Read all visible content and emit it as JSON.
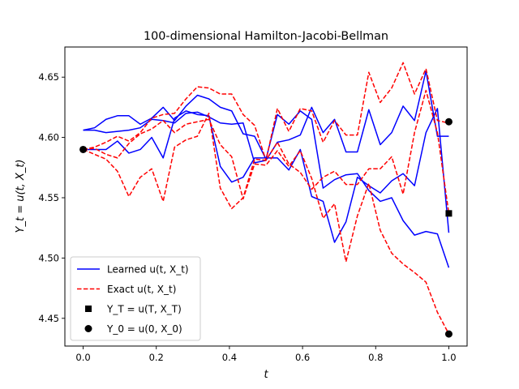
{
  "chart_data": {
    "type": "line",
    "title": "100-dimensional Hamilton-Jacobi-Bellman",
    "xlabel": "t",
    "ylabel": "Y_t = u(t, X_t)",
    "xlim": [
      -0.05,
      1.05
    ],
    "ylim": [
      4.427,
      4.675
    ],
    "xticks": [
      0.0,
      0.2,
      0.4,
      0.6,
      0.8,
      1.0
    ],
    "yticks": [
      4.45,
      4.5,
      4.55,
      4.6,
      4.65
    ],
    "x": [
      0.0,
      0.0312,
      0.0625,
      0.0938,
      0.125,
      0.1562,
      0.1875,
      0.2188,
      0.25,
      0.2812,
      0.3125,
      0.3438,
      0.375,
      0.4062,
      0.4375,
      0.4688,
      0.5,
      0.5312,
      0.5625,
      0.5938,
      0.625,
      0.6562,
      0.6875,
      0.7188,
      0.75,
      0.7812,
      0.8125,
      0.8438,
      0.875,
      0.9062,
      0.9375,
      0.9688,
      1.0
    ],
    "series": [
      {
        "name": "Learned u(t, X_t)",
        "kind": "learned",
        "color": "#0000ff",
        "values": [
          4.606,
          4.606,
          4.604,
          4.605,
          4.606,
          4.608,
          4.615,
          4.614,
          4.612,
          4.62,
          4.621,
          4.617,
          4.612,
          4.611,
          4.612,
          4.579,
          4.581,
          4.596,
          4.598,
          4.602,
          4.625,
          4.604,
          4.615,
          4.588,
          4.588,
          4.623,
          4.594,
          4.604,
          4.626,
          4.614,
          4.655,
          4.601,
          4.601
        ]
      },
      {
        "name": "",
        "kind": "learned",
        "color": "#0000ff",
        "values": [
          4.606,
          4.608,
          4.615,
          4.618,
          4.618,
          4.611,
          4.616,
          4.625,
          4.614,
          4.626,
          4.635,
          4.632,
          4.625,
          4.622,
          4.603,
          4.601,
          4.582,
          4.619,
          4.611,
          4.622,
          4.615,
          4.558,
          4.565,
          4.569,
          4.57,
          4.556,
          4.547,
          4.55,
          4.531,
          4.519,
          4.522,
          4.52,
          4.492
        ]
      },
      {
        "name": "",
        "kind": "learned",
        "color": "#0000ff",
        "values": [
          4.59,
          4.59,
          4.59,
          4.597,
          4.587,
          4.59,
          4.6,
          4.583,
          4.616,
          4.622,
          4.619,
          4.618,
          4.576,
          4.563,
          4.567,
          4.583,
          4.583,
          4.583,
          4.573,
          4.59,
          4.551,
          4.547,
          4.513,
          4.53,
          4.567,
          4.56,
          4.554,
          4.564,
          4.57,
          4.56,
          4.604,
          4.624,
          4.521
        ]
      },
      {
        "name": "Exact u(t, X_t)",
        "kind": "exact",
        "color": "#ff0000",
        "values": [
          4.59,
          4.592,
          4.596,
          4.601,
          4.597,
          4.604,
          4.616,
          4.619,
          4.62,
          4.632,
          4.642,
          4.641,
          4.636,
          4.636,
          4.619,
          4.61,
          4.581,
          4.624,
          4.605,
          4.624,
          4.622,
          4.596,
          4.614,
          4.602,
          4.602,
          4.654,
          4.629,
          4.641,
          4.662,
          4.636,
          4.657,
          4.614,
          4.612
        ]
      },
      {
        "name": "",
        "kind": "exact",
        "color": "#ff0000",
        "values": [
          4.59,
          4.591,
          4.586,
          4.583,
          4.595,
          4.603,
          4.607,
          4.614,
          4.604,
          4.611,
          4.613,
          4.615,
          4.594,
          4.584,
          4.549,
          4.578,
          4.577,
          4.589,
          4.576,
          4.589,
          4.566,
          4.533,
          4.545,
          4.497,
          4.535,
          4.562,
          4.523,
          4.504,
          4.495,
          4.488,
          4.48,
          4.455,
          4.437
        ]
      },
      {
        "name": "",
        "kind": "exact",
        "color": "#ff0000",
        "values": [
          4.59,
          4.586,
          4.582,
          4.572,
          4.551,
          4.567,
          4.574,
          4.547,
          4.592,
          4.598,
          4.601,
          4.62,
          4.558,
          4.541,
          4.55,
          4.582,
          4.581,
          4.596,
          4.578,
          4.571,
          4.557,
          4.567,
          4.572,
          4.561,
          4.561,
          4.574,
          4.574,
          4.584,
          4.553,
          4.604,
          4.639,
          4.604,
          4.537
        ]
      }
    ],
    "markers": [
      {
        "name": "Y_T = u(T, X_T)",
        "shape": "square",
        "points": [
          [
            1.0,
            4.537
          ]
        ]
      },
      {
        "name": "Y_0 = u(0, X_0)",
        "shape": "circle",
        "points": [
          [
            0.0,
            4.59
          ],
          [
            1.0,
            4.613
          ],
          [
            1.0,
            4.437
          ]
        ]
      }
    ],
    "legend": {
      "position": "lower-left",
      "entries": [
        {
          "label": "Learned u(t, X_t)",
          "style": "solid",
          "color": "#0000ff"
        },
        {
          "label": "Exact u(t, X_t)",
          "style": "dashed",
          "color": "#ff0000"
        },
        {
          "label": "Y_T = u(T, X_T)",
          "style": "square",
          "color": "#000000"
        },
        {
          "label": "Y_0 = u(0, X_0)",
          "style": "circle",
          "color": "#000000"
        }
      ]
    },
    "grid": false
  }
}
